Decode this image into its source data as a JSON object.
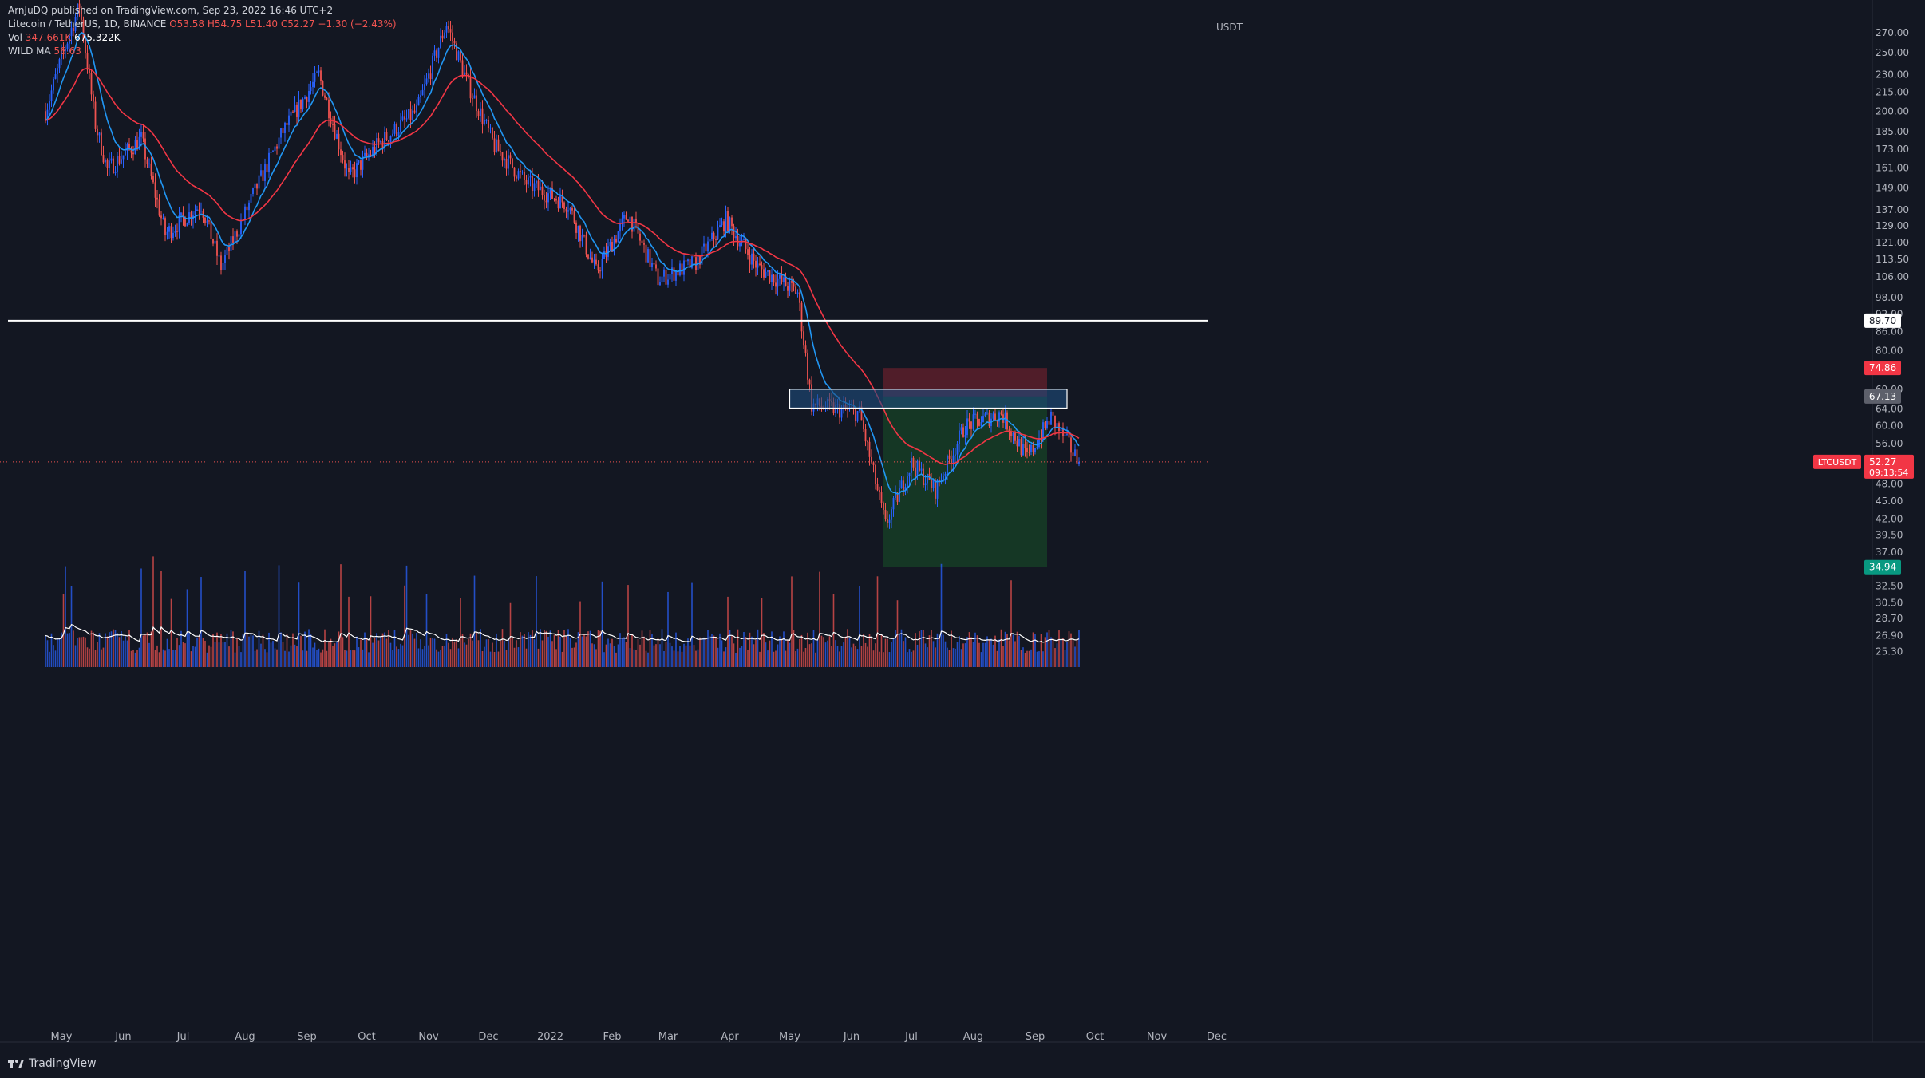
{
  "header": {
    "publisher": "ArnJuDQ published on TradingView.com, Sep 23, 2022 16:46 UTC+2",
    "symbol": "Litecoin / TetherUS, 1D, BINANCE",
    "ohlc": "O53.58 H54.75 L51.40 C52.27 −1.30 (−2.43%)",
    "vol_label": "Vol",
    "vol_value": "347.661K",
    "vol_ma": "675.322K",
    "wild_label": "WILD MA",
    "wild_value": "56.63"
  },
  "footer": {
    "brand": "TradingView"
  },
  "colors": {
    "background": "#131722",
    "up": "#2962ff",
    "down": "#ef5350",
    "ma_fast": "#2196f3",
    "ma_slow": "#f23645",
    "volume_ma": "#ffffff",
    "support_line": "#ffffff",
    "zone_fill": "#1e4d7e",
    "stop_zone": "#5c1f2a",
    "target_zone": "#163d26"
  },
  "chart_data": {
    "type": "candlestick",
    "symbol": "LTCUSDT",
    "scale": "log",
    "currency": "USDT",
    "y_ticks": [
      270.0,
      250.0,
      230.0,
      215.0,
      200.0,
      185.0,
      173.0,
      161.0,
      149.0,
      137.0,
      129.0,
      121.0,
      113.5,
      106.0,
      98.0,
      92.0,
      86.0,
      80.0,
      69.0,
      64.0,
      60.0,
      56.0,
      48.0,
      45.0,
      42.0,
      39.5,
      37.0,
      34.94,
      32.5,
      30.5,
      28.7,
      26.9,
      25.3
    ],
    "y_tick_labels": [
      "270.00",
      "250.00",
      "230.00",
      "215.00",
      "200.00",
      "185.00",
      "173.00",
      "161.00",
      "149.00",
      "137.00",
      "129.00",
      "121.00",
      "113.50",
      "106.00",
      "98.00",
      "92.00",
      "86.00",
      "80.00",
      "69.00",
      "64.00",
      "60.00",
      "56.00",
      "48.00",
      "45.00",
      "42.00",
      "39.50",
      "37.00",
      "",
      "32.50",
      "30.50",
      "28.70",
      "26.90",
      "25.30"
    ],
    "x_ticks": [
      "May",
      "Jun",
      "Jul",
      "Aug",
      "Sep",
      "Oct",
      "Nov",
      "Dec",
      "2022",
      "Feb",
      "Mar",
      "Apr",
      "May",
      "Jun",
      "Jul",
      "Aug",
      "Sep",
      "Oct",
      "Nov",
      "Dec"
    ],
    "price_path": [
      {
        "date": "2021-04-23",
        "close": 200
      },
      {
        "date": "2021-05-01",
        "close": 245
      },
      {
        "date": "2021-05-10",
        "close": 300
      },
      {
        "date": "2021-05-18",
        "close": 190
      },
      {
        "date": "2021-05-24",
        "close": 160
      },
      {
        "date": "2021-06-10",
        "close": 180
      },
      {
        "date": "2021-06-22",
        "close": 125
      },
      {
        "date": "2021-07-10",
        "close": 140
      },
      {
        "date": "2021-07-20",
        "close": 110
      },
      {
        "date": "2021-08-05",
        "close": 145
      },
      {
        "date": "2021-08-20",
        "close": 185
      },
      {
        "date": "2021-09-07",
        "close": 230
      },
      {
        "date": "2021-09-22",
        "close": 155
      },
      {
        "date": "2021-10-06",
        "close": 175
      },
      {
        "date": "2021-10-26",
        "close": 200
      },
      {
        "date": "2021-11-10",
        "close": 280
      },
      {
        "date": "2021-11-20",
        "close": 225
      },
      {
        "date": "2021-12-04",
        "close": 175
      },
      {
        "date": "2021-12-20",
        "close": 152
      },
      {
        "date": "2022-01-10",
        "close": 140
      },
      {
        "date": "2022-01-24",
        "close": 108
      },
      {
        "date": "2022-02-09",
        "close": 135
      },
      {
        "date": "2022-02-24",
        "close": 105
      },
      {
        "date": "2022-03-15",
        "close": 112
      },
      {
        "date": "2022-03-30",
        "close": 132
      },
      {
        "date": "2022-04-15",
        "close": 110
      },
      {
        "date": "2022-05-05",
        "close": 100
      },
      {
        "date": "2022-05-12",
        "close": 65
      },
      {
        "date": "2022-06-05",
        "close": 63
      },
      {
        "date": "2022-06-18",
        "close": 41
      },
      {
        "date": "2022-07-01",
        "close": 52
      },
      {
        "date": "2022-07-13",
        "close": 47
      },
      {
        "date": "2022-07-28",
        "close": 60
      },
      {
        "date": "2022-08-15",
        "close": 63
      },
      {
        "date": "2022-08-28",
        "close": 53
      },
      {
        "date": "2022-09-09",
        "close": 62
      },
      {
        "date": "2022-09-23",
        "close": 52.27
      }
    ],
    "support_level": {
      "value": 89.7,
      "label": "89.70"
    },
    "zone": {
      "top": 69.0,
      "bottom": 64.2,
      "start": "2022-05-01",
      "end": "2022-09-17"
    },
    "short_position": {
      "entry": 67.13,
      "entry_label": "67.13",
      "stop": 74.86,
      "stop_label": "74.86",
      "target": 34.94,
      "target_label": "34.94",
      "start": "2022-06-17",
      "end": "2022-09-07"
    },
    "last_price": {
      "symbol_label": "LTCUSDT",
      "value": "52.27",
      "countdown": "09:13:54"
    }
  }
}
